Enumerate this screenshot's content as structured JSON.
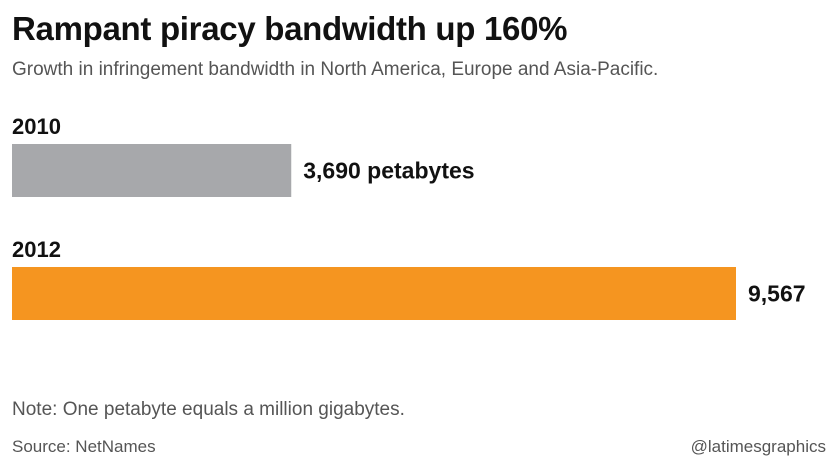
{
  "chart_data": {
    "type": "bar",
    "orientation": "horizontal",
    "title": "Rampant piracy bandwidth up 160%",
    "subtitle": "Growth in infringement bandwidth in North America, Europe and Asia-Pacific.",
    "categories": [
      "2010",
      "2012"
    ],
    "values": [
      3690,
      9567
    ],
    "value_labels": [
      "3,690 petabytes",
      "9,567"
    ],
    "colors": [
      "#a7a8ab",
      "#f59520"
    ],
    "xlim": [
      0,
      9567
    ],
    "grid": false,
    "legend": "none"
  },
  "footer": {
    "note": "Note: One petabyte equals a million gigabytes.",
    "source": "Source: NetNames",
    "credit": "@latimesgraphics"
  }
}
